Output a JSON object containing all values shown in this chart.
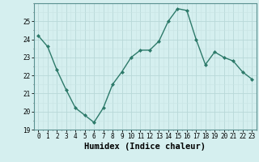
{
  "x": [
    0,
    1,
    2,
    3,
    4,
    5,
    6,
    7,
    8,
    9,
    10,
    11,
    12,
    13,
    14,
    15,
    16,
    17,
    18,
    19,
    20,
    21,
    22,
    23
  ],
  "y": [
    24.2,
    23.6,
    22.3,
    21.2,
    20.2,
    19.8,
    19.4,
    20.2,
    21.5,
    22.2,
    23.0,
    23.4,
    23.4,
    23.9,
    25.0,
    25.7,
    25.6,
    24.0,
    22.6,
    23.3,
    23.0,
    22.8,
    22.2,
    21.8
  ],
  "line_color": "#2d7a6a",
  "marker": "D",
  "markersize": 2,
  "linewidth": 1.0,
  "bg_color": "#d5efef",
  "xlabel": "Humidex (Indice chaleur)",
  "xlim": [
    -0.5,
    23.5
  ],
  "ylim": [
    19,
    26
  ],
  "yticks": [
    19,
    20,
    21,
    22,
    23,
    24,
    25
  ],
  "xticks": [
    0,
    1,
    2,
    3,
    4,
    5,
    6,
    7,
    8,
    9,
    10,
    11,
    12,
    13,
    14,
    15,
    16,
    17,
    18,
    19,
    20,
    21,
    22,
    23
  ],
  "tick_fontsize": 5.5,
  "xlabel_fontsize": 7.5,
  "grid_major_color": "#b8d8d8",
  "grid_minor_color": "#c8e4e4",
  "spine_color": "#5a9090"
}
